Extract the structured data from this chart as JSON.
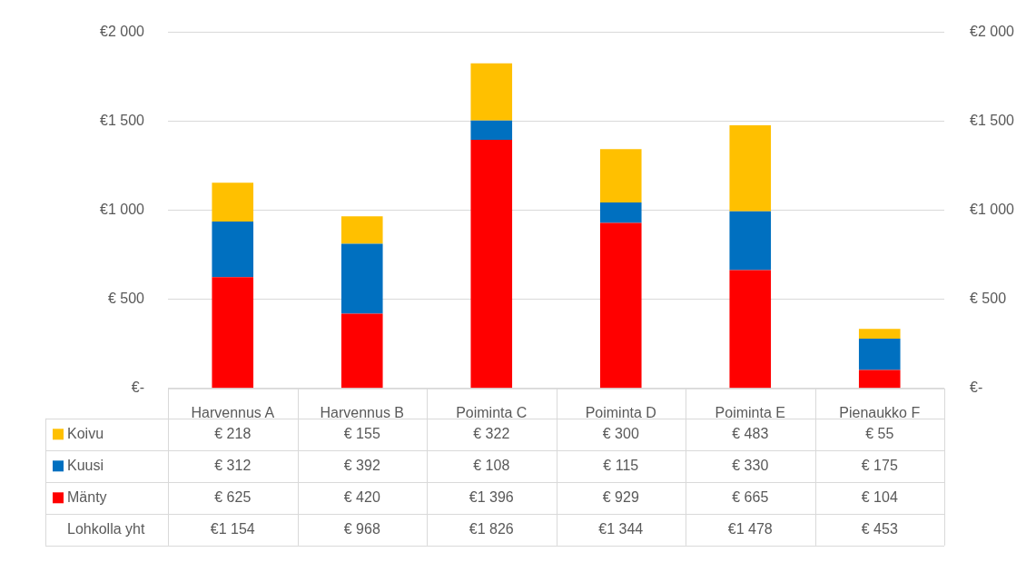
{
  "chart_data": {
    "type": "bar",
    "stacked": true,
    "categories": [
      "Harvennus A",
      "Harvennus B",
      "Poiminta C",
      "Poiminta D",
      "Poiminta E",
      "Pienaukko F"
    ],
    "series": [
      {
        "name": "Mänty",
        "color": "#ff0000",
        "values": [
          625,
          420,
          1396,
          929,
          665,
          104
        ],
        "value_labels": [
          "€ 625",
          "€ 420",
          "€1 396",
          "€ 929",
          "€ 665",
          "€ 104"
        ]
      },
      {
        "name": "Kuusi",
        "color": "#0070c0",
        "values": [
          312,
          392,
          108,
          115,
          330,
          175
        ],
        "value_labels": [
          "€ 312",
          "€ 392",
          "€ 108",
          "€ 115",
          "€ 330",
          "€ 175"
        ]
      },
      {
        "name": "Koivu",
        "color": "#ffc000",
        "values": [
          218,
          155,
          322,
          300,
          483,
          55
        ],
        "value_labels": [
          "€ 218",
          "€ 155",
          "€ 322",
          "€ 300",
          "€ 483",
          "€ 55"
        ]
      }
    ],
    "annotations": [
      "Lohkolla yht",
      "€1 154",
      "€ 968",
      "€1 826",
      "€1 344",
      "€1 478",
      "€ 453"
    ],
    "ylim": [
      0,
      2000
    ],
    "yticks": [
      {
        "value": 0,
        "label": "€-"
      },
      {
        "value": 500,
        "label": "€ 500"
      },
      {
        "value": 1000,
        "label": "€1 000"
      },
      {
        "value": 1500,
        "label": "€1 500"
      },
      {
        "value": 2000,
        "label": "€2 000"
      }
    ],
    "y2lim": [
      0,
      2000
    ],
    "y2ticks": [
      {
        "value": 0,
        "label": "€-"
      },
      {
        "value": 500,
        "label": "€ 500"
      },
      {
        "value": 1000,
        "label": "€1 000"
      },
      {
        "value": 1500,
        "label": "€1 500"
      },
      {
        "value": 2000,
        "label": "€2 000"
      }
    ],
    "grid": "y",
    "legend": "bottom left"
  }
}
